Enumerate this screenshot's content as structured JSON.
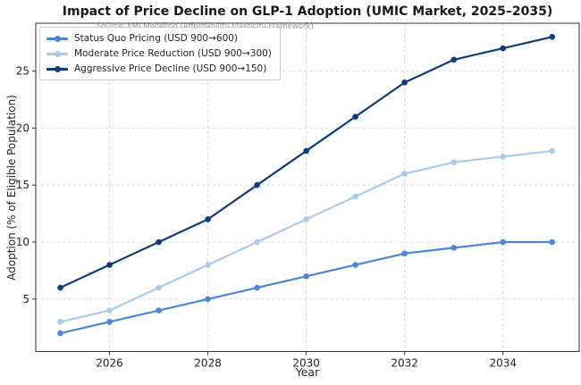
{
  "figure": {
    "background": "#ffffff"
  },
  "chart_data": {
    "type": "line",
    "title": "Impact of Price Decline on GLP-1 Adoption (UMIC Market, 2025–2035)",
    "subtitle": "Source: FMI Modeling (Affordability Elasticity Framework)",
    "xlabel": "Year",
    "ylabel": "Adoption (% of Eligible Population)",
    "x": [
      2025,
      2026,
      2027,
      2028,
      2029,
      2030,
      2031,
      2032,
      2033,
      2034,
      2035
    ],
    "series": [
      {
        "name": "Status Quo Pricing (USD 900→600)",
        "color": "#4a86d9",
        "values": [
          2,
          3,
          4,
          5,
          6,
          7,
          8,
          9,
          9.5,
          10,
          10
        ]
      },
      {
        "name": "Moderate Price Reduction (USD 900→300)",
        "color": "#a9cbea",
        "values": [
          3,
          4,
          6,
          8,
          10,
          12,
          14,
          16,
          17,
          17.5,
          18
        ]
      },
      {
        "name": "Aggressive Price Decline (USD 900→150)",
        "color": "#0c3d7c",
        "values": [
          6,
          8,
          10,
          12,
          15,
          18,
          21,
          24,
          26,
          27,
          28
        ]
      }
    ],
    "xticks": [
      2026,
      2028,
      2030,
      2032,
      2034
    ],
    "yticks": [
      5,
      10,
      15,
      20,
      25
    ],
    "xlim": [
      2024.5,
      2035.55
    ],
    "ylim": [
      0.4,
      29.2
    ],
    "grid": true,
    "grid_color": "#d9d9d9",
    "spine_color": "#333333",
    "tick_label_color": "#262626",
    "legend_position": "upper left"
  }
}
